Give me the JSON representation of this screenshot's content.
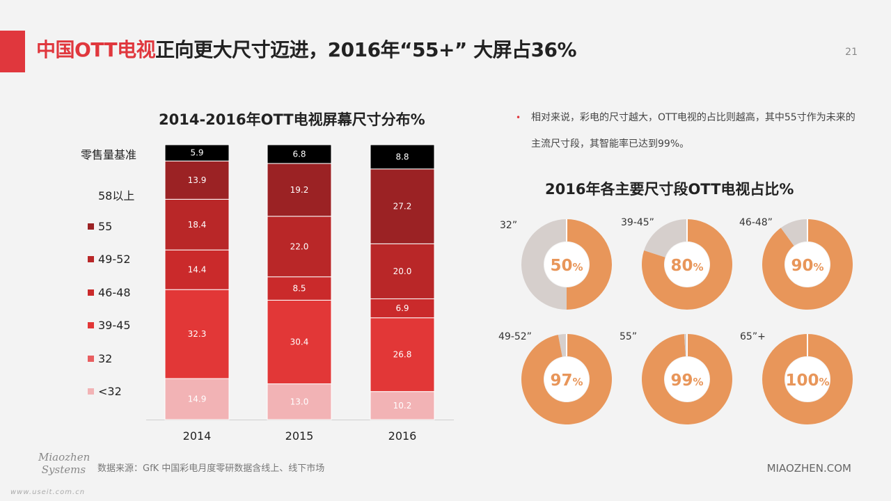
{
  "page": {
    "title_highlight": "中国OTT电视",
    "title_rest": "正向更大尺寸迈进，2016年“55+” 大屏占36%",
    "page_number": "21"
  },
  "bar_chart_title": "2014-2016年OTT电视屏幕尺寸分布%",
  "legend_title": "零售量基准",
  "note_text": "相对来说，彩电的尺寸越大，OTT电视的占比则越高，其中55寸作为未来的主流尺寸段，其智能率已达到99%。",
  "donut_chart_title": "2016年各主要尺寸段OTT电视占比%",
  "source_text": "数据来源：GfK 中国彩电月度零研数据含线上、线下市场",
  "logo_text": "Miaozhen Systems",
  "site_text": "MIAOZHEN.COM",
  "watermark_text": "www.useit.com.cn",
  "colors": {
    "accent": "#e0373d",
    "donut_fill": "#e8965a",
    "donut_rest": "#d6cfcc",
    "segments": [
      "#f2b3b5",
      "#e85e60",
      "#e23737",
      "#ca2a2b",
      "#b92728",
      "#9b2224"
    ]
  },
  "chart_data": [
    {
      "type": "bar",
      "stacked": true,
      "title": "2014-2016年OTT电视屏幕尺寸分布%",
      "categories": [
        "2014",
        "2015",
        "2016"
      ],
      "series": [
        {
          "name": "<32",
          "values": [
            14.9,
            13.0,
            10.2
          ]
        },
        {
          "name": "32",
          "values": [
            0,
            0,
            0
          ]
        },
        {
          "name": "39-45",
          "values": [
            32.3,
            30.4,
            26.8
          ]
        },
        {
          "name": "46-48",
          "values": [
            14.4,
            8.5,
            6.9
          ]
        },
        {
          "name": "49-52",
          "values": [
            18.4,
            22.0,
            20.0
          ]
        },
        {
          "name": "55",
          "values": [
            13.9,
            19.2,
            27.2
          ]
        },
        {
          "name": "58以上",
          "values": [
            5.9,
            6.8,
            8.8
          ]
        }
      ],
      "legend_order": [
        "58以上",
        "55",
        "49-52",
        "46-48",
        "39-45",
        "32",
        "<32"
      ],
      "legend_position": "left",
      "ylim": [
        0,
        100
      ],
      "grid": false
    },
    {
      "type": "pie",
      "donut": true,
      "title": "2016年各主要尺寸段OTT电视占比%",
      "items": [
        {
          "label": "32”",
          "value": 50,
          "display": "50"
        },
        {
          "label": "39-45”",
          "value": 80,
          "display": "80"
        },
        {
          "label": "46-48”",
          "value": 90,
          "display": "90"
        },
        {
          "label": "49-52”",
          "value": 97,
          "display": "97"
        },
        {
          "label": "55”",
          "value": 99,
          "display": "99"
        },
        {
          "label": "65”+",
          "value": 100,
          "display": "100"
        }
      ],
      "unit": "%"
    }
  ]
}
